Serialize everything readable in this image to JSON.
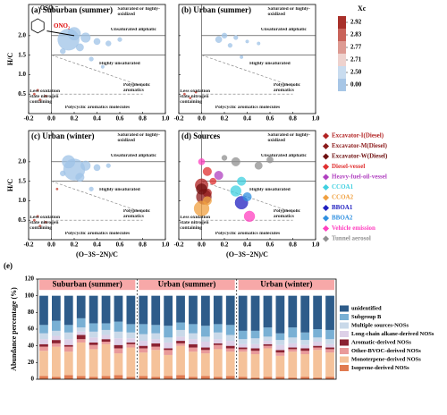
{
  "chart_data": [
    {
      "type": "scatter",
      "title": "(a) Suburban (summer)",
      "ylabel": "H/C",
      "xlim": [
        -0.2,
        1.0
      ],
      "ylim": [
        0,
        2.8
      ],
      "xticks": [
        -0.2,
        {
          "value": 0,
          "label": "0.0"
        },
        0.2,
        0.4,
        0.6,
        0.8,
        {
          "value": 1,
          "label": "1.0"
        }
      ],
      "yticks": [
        0.5,
        {
          "value": 1,
          "label": "1.0"
        },
        1.5,
        {
          "value": 2,
          "label": "2.0"
        }
      ],
      "show_ytick_labels": true,
      "boundaries": [
        [
          0,
          0,
          0,
          2.8
        ],
        [
          0,
          1.5,
          1,
          1.5
        ],
        [
          0,
          2.0,
          1,
          2.0
        ]
      ],
      "dashed_boundaries": [
        [
          0,
          1.5,
          0.8,
          0.7
        ],
        [
          0,
          0.5,
          0.8,
          0.5
        ]
      ],
      "annotations": {
        "saturated": "Saturated or highly-oxidized",
        "unsat": "Unsaturated aliphatic",
        "highly": "Highly unsaturated",
        "polyphenolic": "Polyphenolic aromatics",
        "polycyclic": "Polycyclic aromatics molecules",
        "lessox": "Less oxidation state nitrogen containing",
        "oso3": "OSO₃⁻",
        "ono2": "ONO₂"
      },
      "series": [
        {
          "color": "#9fc3e7",
          "x": [
            0.15,
            0.2,
            0.3,
            0.25,
            0.4,
            0.5,
            0.1,
            0.35,
            0.6,
            0.45
          ],
          "y": [
            1.9,
            2.05,
            1.95,
            1.7,
            1.85,
            1.8,
            1.6,
            1.4,
            1.9,
            1.2
          ],
          "sizes": [
            20,
            12,
            9,
            7,
            6,
            5,
            5,
            4,
            4,
            3
          ]
        },
        {
          "color": "#c0392b",
          "x": [
            -0.15,
            -0.1,
            -0.12,
            -0.05
          ],
          "y": [
            0.5,
            0.35,
            0.6,
            0.45
          ],
          "sizes": [
            2,
            2,
            2,
            2
          ]
        }
      ],
      "colorbar": {
        "title": "Xc",
        "colors": [
          "#a8302a",
          "#c9635a",
          "#dd9a92",
          "#eed2ce",
          "#c9dcef",
          "#a7c6e6"
        ],
        "ticks": [
          2.92,
          2.83,
          2.77,
          2.71,
          {
            "value": 2.5,
            "label": "2.50"
          },
          {
            "value": 0,
            "label": "0.00"
          }
        ]
      }
    },
    {
      "type": "scatter",
      "title": "(b) Urban (summer)",
      "xlim": [
        -0.2,
        1.0
      ],
      "ylim": [
        0,
        2.8
      ],
      "xticks": [
        -0.2,
        {
          "value": 0,
          "label": "0.0"
        },
        0.2,
        0.4,
        0.6,
        0.8,
        {
          "value": 1,
          "label": "1.0"
        }
      ],
      "yticks": [
        0.5,
        {
          "value": 1,
          "label": "1.0"
        },
        1.5,
        {
          "value": 2,
          "label": "2.0"
        }
      ],
      "show_ytick_labels": false,
      "boundaries": [
        [
          0,
          0,
          0,
          2.8
        ],
        [
          0,
          1.5,
          1,
          1.5
        ],
        [
          0,
          2.0,
          1,
          2.0
        ]
      ],
      "dashed_boundaries": [
        [
          0,
          1.5,
          0.8,
          0.7
        ],
        [
          0,
          0.5,
          0.8,
          0.5
        ]
      ],
      "annotations": {
        "saturated": "Saturated or highly-oxidized",
        "unsat": "Unsaturated aliphatic",
        "highly": "Highly unsaturated",
        "polyphenolic": "Polyphenolic aromatics",
        "polycyclic": "Polycyclic aromatics molecules",
        "lessox": "Less oxidation state nitrogen containing"
      },
      "series": [
        {
          "color": "#9fc3e7",
          "x": [
            0.15,
            0.2,
            0.3,
            0.25,
            0.4,
            0.5,
            0.35
          ],
          "y": [
            1.9,
            2.0,
            1.95,
            1.75,
            1.85,
            1.8,
            1.45
          ],
          "sizes": [
            6,
            5,
            4,
            4,
            3,
            3,
            3
          ]
        },
        {
          "color": "#c0392b",
          "x": [
            -0.15,
            -0.1,
            -0.05
          ],
          "y": [
            0.5,
            0.4,
            0.55
          ],
          "sizes": [
            2,
            2,
            2
          ]
        }
      ]
    },
    {
      "type": "scatter",
      "title": "(c) Urban (winter)",
      "ylabel": "H/C",
      "xlabel": "(O−3S−2N)/C",
      "xlim": [
        -0.2,
        1.0
      ],
      "ylim": [
        0,
        2.8
      ],
      "xticks": [
        -0.2,
        {
          "value": 0,
          "label": "0.0"
        },
        0.2,
        0.4,
        0.6,
        0.8,
        {
          "value": 1,
          "label": "1.0"
        }
      ],
      "yticks": [
        0.5,
        {
          "value": 1,
          "label": "1.0"
        },
        1.5,
        {
          "value": 2,
          "label": "2.0"
        }
      ],
      "show_ytick_labels": true,
      "boundaries": [
        [
          0,
          0,
          0,
          2.8
        ],
        [
          0,
          1.5,
          1,
          1.5
        ],
        [
          0,
          2.0,
          1,
          2.0
        ]
      ],
      "dashed_boundaries": [
        [
          0,
          1.5,
          0.8,
          0.7
        ],
        [
          0,
          0.5,
          0.8,
          0.5
        ]
      ],
      "annotations": {
        "saturated": "Saturated or highly-oxidized",
        "unsat": "Unsaturated aliphatic",
        "highly": "Highly unsaturated",
        "polyphenolic": "Polyphenolic aromatics",
        "polycyclic": "Polycyclic aromatics molecules",
        "lessox": "Less oxidation state nitrogen containing"
      },
      "series": [
        {
          "color": "#9fc3e7",
          "x": [
            0.2,
            0.15,
            0.3,
            0.25,
            0.4,
            0.1,
            0.35,
            0.5
          ],
          "y": [
            1.8,
            2.0,
            1.9,
            1.6,
            1.85,
            1.7,
            1.3,
            1.9
          ],
          "sizes": [
            20,
            12,
            9,
            8,
            6,
            5,
            4,
            4
          ]
        },
        {
          "color": "#c0392b",
          "x": [
            -0.15,
            -0.1,
            -0.12,
            -0.05,
            0.05
          ],
          "y": [
            0.5,
            0.35,
            0.6,
            0.45,
            1.3
          ],
          "sizes": [
            2,
            2,
            2,
            2,
            2
          ]
        }
      ]
    },
    {
      "type": "scatter",
      "title": "(d) Sources",
      "xlabel": "(O−3S−2N)/C",
      "xlim": [
        -0.2,
        1.0
      ],
      "ylim": [
        0,
        2.8
      ],
      "xticks": [
        -0.2,
        {
          "value": 0,
          "label": "0.0"
        },
        0.2,
        0.4,
        0.6,
        0.8,
        {
          "value": 1,
          "label": "1.0"
        }
      ],
      "yticks": [
        0.5,
        {
          "value": 1,
          "label": "1.0"
        },
        1.5,
        {
          "value": 2,
          "label": "2.0"
        }
      ],
      "show_ytick_labels": false,
      "boundaries": [
        [
          0,
          0,
          0,
          2.8
        ],
        [
          0,
          1.5,
          1,
          1.5
        ],
        [
          0,
          2.0,
          1,
          2.0
        ]
      ],
      "dashed_boundaries": [
        [
          0,
          1.5,
          0.8,
          0.7
        ],
        [
          0,
          0.5,
          0.8,
          0.5
        ]
      ],
      "annotations": {
        "saturated": "Saturated or highly-oxidized",
        "unsat": "Unsaturated aliphatic",
        "highly": "Highly unsaturated",
        "polyphenolic": "Polyphenolic aromatics",
        "polycyclic": "Polycyclic aromatics molecules",
        "lessox": "Less oxidation state nitrogen containing"
      },
      "legend": true,
      "series": [
        {
          "name": "Excavator-I(Diesel)",
          "color": "#b22222",
          "x": [
            0.0,
            0.05
          ],
          "y": [
            1.4,
            1.2
          ],
          "sizes": [
            12,
            8
          ]
        },
        {
          "name": "Excavator-M(Diesel)",
          "color": "#8b1a1a",
          "x": [
            0.02
          ],
          "y": [
            1.1
          ],
          "sizes": [
            14
          ]
        },
        {
          "name": "Excavator-W(Diesel)",
          "color": "#6e1010",
          "x": [
            0.0
          ],
          "y": [
            1.3
          ],
          "sizes": [
            10
          ]
        },
        {
          "name": "Diesel-vessel",
          "color": "#e03030",
          "x": [
            0.05,
            0.1
          ],
          "y": [
            1.75,
            1.5
          ],
          "sizes": [
            8,
            6
          ]
        },
        {
          "name": "Heavy-fuel-oil-vessel",
          "color": "#b040c0",
          "x": [
            0.15
          ],
          "y": [
            1.65
          ],
          "sizes": [
            8
          ]
        },
        {
          "name": "CCOA1",
          "color": "#40d0e0",
          "x": [
            0.3,
            0.35
          ],
          "y": [
            1.25,
            1.5
          ],
          "sizes": [
            10,
            8
          ]
        },
        {
          "name": "CCOA2",
          "color": "#f0a040",
          "x": [
            0.0,
            0.05
          ],
          "y": [
            0.8,
            1.0
          ],
          "sizes": [
            14,
            8
          ]
        },
        {
          "name": "BBOA1",
          "color": "#2020c0",
          "x": [
            0.35
          ],
          "y": [
            0.95
          ],
          "sizes": [
            12
          ]
        },
        {
          "name": "BBOA2",
          "color": "#3090e0",
          "x": [
            0.4
          ],
          "y": [
            1.1
          ],
          "sizes": [
            8
          ]
        },
        {
          "name": "Vehicle emission",
          "color": "#ff40c0",
          "x": [
            0.0,
            0.42
          ],
          "y": [
            2.0,
            0.6
          ],
          "sizes": [
            6,
            10
          ]
        },
        {
          "name": "Tunnel aerosol",
          "color": "#909090",
          "x": [
            0.3,
            0.5,
            0.6,
            0.2
          ],
          "y": [
            2.0,
            1.9,
            2.05,
            2.1
          ],
          "sizes": [
            8,
            7,
            6,
            5
          ]
        }
      ]
    },
    {
      "type": "stacked_bar",
      "title": "(e)",
      "ylabel": "Abundance percentage (%)",
      "ylim": [
        0,
        120
      ],
      "yticks": [
        0,
        20,
        40,
        60,
        80,
        100,
        120
      ],
      "groups": [
        {
          "label": "Suburban (summer)",
          "categories": [
            null,
            null,
            null,
            null,
            null,
            null,
            null,
            null
          ]
        },
        {
          "label": "Urban (summer)",
          "categories": [
            null,
            null,
            null,
            null,
            null,
            null,
            null,
            null
          ]
        },
        {
          "label": "Urban (winter)",
          "categories": [
            null,
            null,
            null,
            null,
            null,
            null,
            null,
            null
          ]
        }
      ],
      "group_color": "#f7a8a8",
      "series": [
        {
          "name": "Isoprene-derived NOSs",
          "color": "#e07a50",
          "values": [
            4,
            3,
            5,
            4,
            3,
            4,
            5,
            3,
            4,
            3,
            4,
            5,
            3,
            4,
            3,
            4,
            3,
            2,
            3,
            3,
            2,
            3,
            2,
            3
          ]
        },
        {
          "name": "Monoterpene-derived NOSs",
          "color": "#f5c29a",
          "values": [
            30,
            36,
            28,
            40,
            33,
            38,
            26,
            35,
            28,
            32,
            25,
            35,
            30,
            27,
            33,
            29,
            30,
            28,
            34,
            25,
            31,
            27,
            33,
            29
          ]
        },
        {
          "name": "Other-BVOC-derived NOSs",
          "color": "#e99a9a",
          "values": [
            5,
            4,
            6,
            4,
            5,
            3,
            6,
            4,
            5,
            4,
            6,
            3,
            5,
            4,
            5,
            4,
            3,
            4,
            3,
            4,
            3,
            4,
            3,
            4
          ]
        },
        {
          "name": "Aromatic-derived NOSs",
          "color": "#8b2232",
          "values": [
            3,
            4,
            2,
            5,
            3,
            3,
            4,
            2,
            3,
            4,
            2,
            3,
            4,
            3,
            2,
            3,
            2,
            3,
            2,
            3,
            2,
            3,
            2,
            2
          ]
        },
        {
          "name": "Long-chain alkane-derived NOSs",
          "color": "#ddd0e8",
          "values": [
            6,
            5,
            7,
            4,
            6,
            5,
            8,
            5,
            6,
            5,
            7,
            5,
            6,
            7,
            5,
            6,
            4,
            5,
            4,
            6,
            5,
            4,
            5,
            4
          ]
        },
        {
          "name": "Multiple sources-NOSs",
          "color": "#c9d9e9",
          "values": [
            7,
            6,
            8,
            5,
            7,
            6,
            8,
            7,
            8,
            7,
            6,
            8,
            7,
            6,
            8,
            7,
            6,
            7,
            5,
            6,
            7,
            6,
            5,
            6
          ]
        },
        {
          "name": "Subgroup B",
          "color": "#79b0d4",
          "values": [
            10,
            12,
            9,
            11,
            10,
            8,
            12,
            10,
            12,
            10,
            14,
            9,
            11,
            13,
            10,
            12,
            10,
            9,
            11,
            8,
            12,
            9,
            10,
            11
          ]
        },
        {
          "name": "unidentified",
          "color": "#2e5c8a",
          "values": [
            35,
            30,
            35,
            27,
            33,
            33,
            31,
            34,
            34,
            35,
            36,
            32,
            34,
            36,
            34,
            35,
            42,
            42,
            38,
            45,
            38,
            44,
            40,
            41
          ]
        }
      ]
    }
  ]
}
